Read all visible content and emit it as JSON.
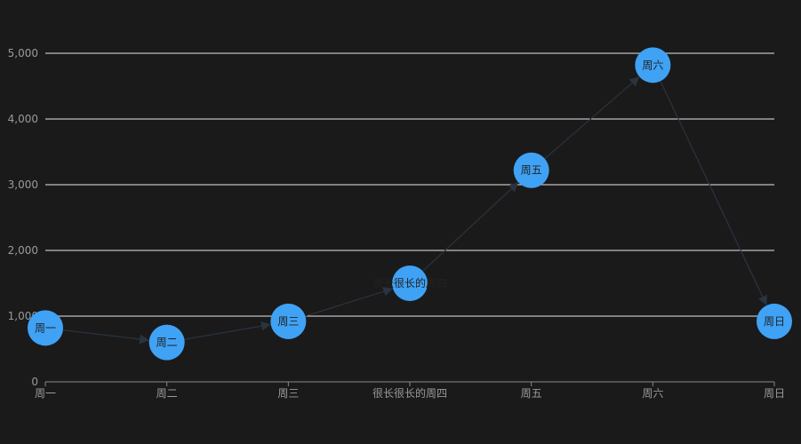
{
  "colors": {
    "background": "#1a1a1a",
    "gridline": "#e8e8e8",
    "axis": "#888888",
    "tick_text": "#9a9a9a",
    "node_fill": "#3fa2f5",
    "node_label": "#222222",
    "edge": "#2a3440",
    "arrow": "#2a3440"
  },
  "chart_data": {
    "type": "line",
    "categories": [
      "周一",
      "周二",
      "周三",
      "很长很长的周四",
      "周五",
      "周六",
      "周日"
    ],
    "values": [
      820,
      600,
      920,
      1500,
      3220,
      4820,
      920
    ],
    "node_labels": [
      "周一",
      "周二",
      "周三",
      "很长很长的周四",
      "周五",
      "周六",
      "周日"
    ],
    "ylim": [
      0,
      5000
    ],
    "yticks": [
      0,
      1000,
      2000,
      3000,
      4000,
      5000
    ],
    "ytick_labels": [
      "0",
      "1,000",
      "2,000",
      "3,000",
      "4,000",
      "5,000"
    ],
    "grid": true,
    "edge_arrows": true,
    "title": "",
    "xlabel": "",
    "ylabel": ""
  }
}
